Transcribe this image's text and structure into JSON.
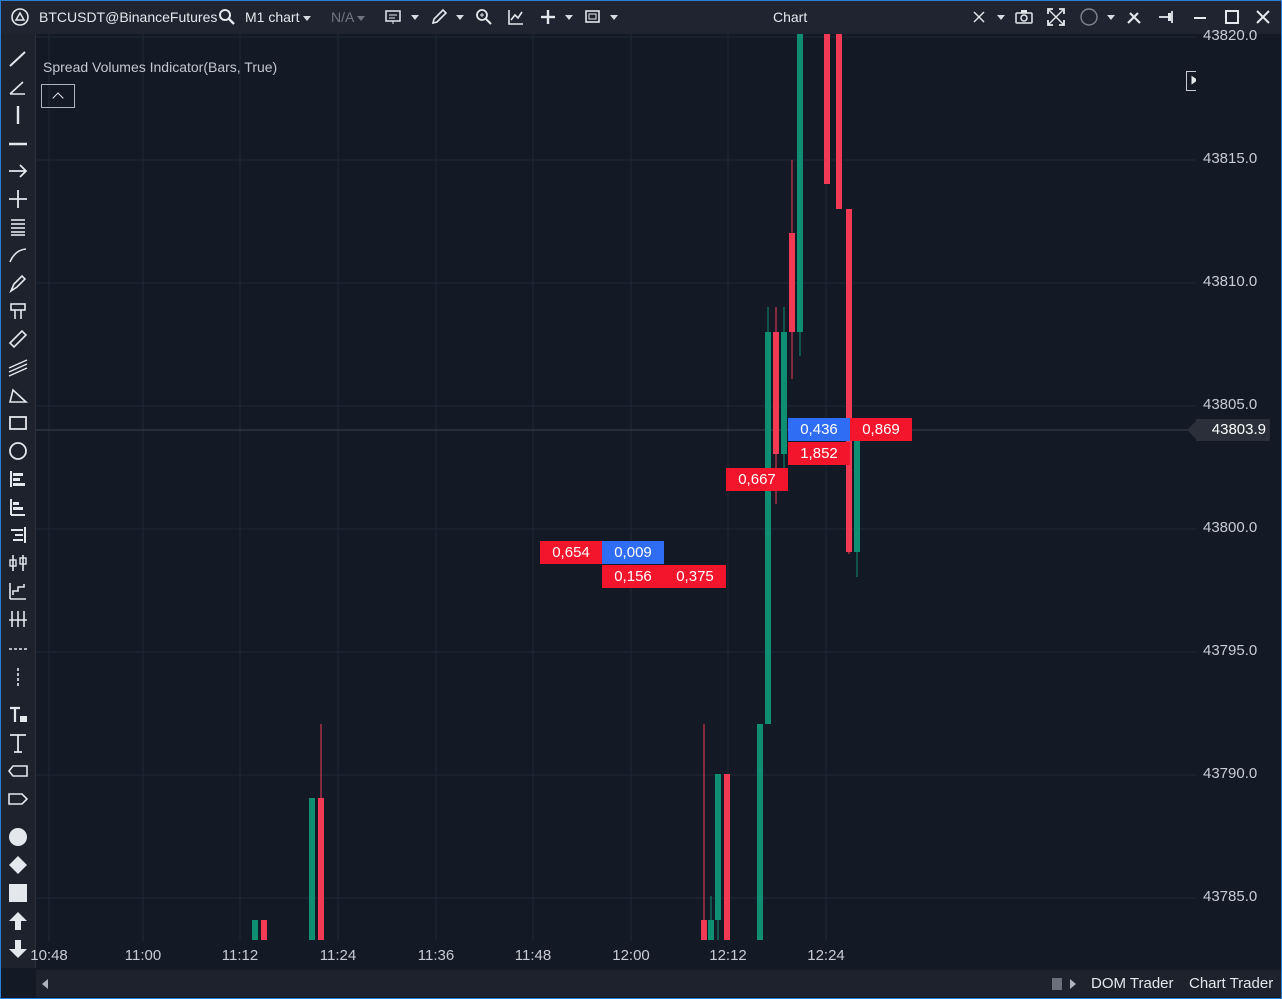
{
  "titlebar": {
    "symbol": "BTCUSDT@BinanceFutures",
    "timeframe": "M1 chart",
    "template": "N/A",
    "title": "Chart"
  },
  "indicator": {
    "label": "Spread Volumes Indicator(Bars, True)"
  },
  "colors": {
    "background": "#131a26",
    "bull": "#0e8f73",
    "bear": "#f23a55",
    "vol_sell": "#f2152c",
    "vol_buy": "#2f6df5",
    "accent_border": "#2a7fd4"
  },
  "price_axis": {
    "labels": [
      "43820.0",
      "43815.0",
      "43810.0",
      "43805.0",
      "43800.0",
      "43795.0",
      "43790.0",
      "43785.0"
    ],
    "last_price": "43803.9"
  },
  "time_axis": {
    "labels": [
      "10:48",
      "11:00",
      "11:12",
      "11:24",
      "11:36",
      "11:48",
      "12:00",
      "12:12",
      "12:24"
    ]
  },
  "volume_labels": [
    {
      "text": "0,654",
      "side": "sell"
    },
    {
      "text": "0,009",
      "side": "buy"
    },
    {
      "text": "0,156",
      "side": "sell"
    },
    {
      "text": "0,375",
      "side": "sell"
    },
    {
      "text": "0,667",
      "side": "sell"
    },
    {
      "text": "0,436",
      "side": "buy"
    },
    {
      "text": "0,869",
      "side": "sell"
    },
    {
      "text": "1,852",
      "side": "sell"
    }
  ],
  "bottom": {
    "dom_trader": "DOM Trader",
    "chart_trader": "Chart Trader"
  }
}
